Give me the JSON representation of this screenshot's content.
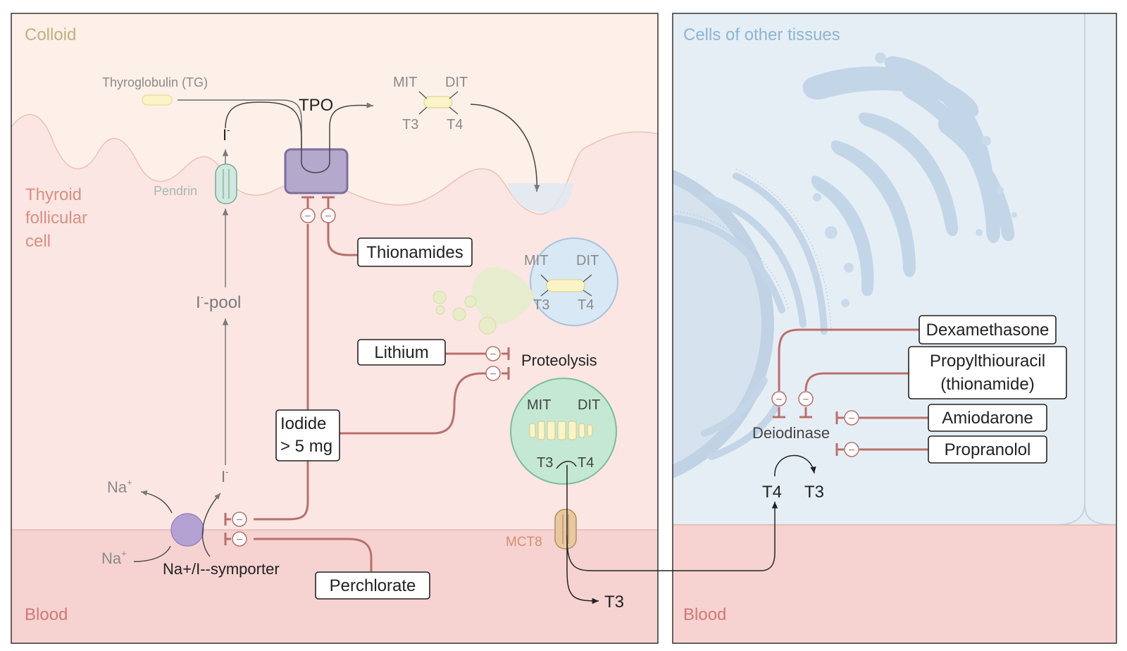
{
  "left_panel": {
    "colloid_label": "Colloid",
    "follicular_cell_label": [
      "Thyroid",
      "follicular",
      "cell"
    ],
    "blood_label": "Blood",
    "thyroglobulin_label": "Thyroglobulin (TG)",
    "tpo_label": "TPO",
    "iodide_top_label": "I",
    "iodide_top_sup": "-",
    "pendrin_label": "Pendrin",
    "iodide_pool_label": "I",
    "iodide_pool_sup": "-",
    "iodide_pool_suffix": "-pool",
    "iodide_bottom_label": "I",
    "iodide_bottom_sup": "-",
    "na_out_label": "Na",
    "na_out_sup": "+",
    "na_in_label": "Na",
    "na_in_sup": "+",
    "symporter_label": "Na+/I--symporter",
    "colloid_mit": "MIT",
    "colloid_dit": "DIT",
    "colloid_t3": "T3",
    "colloid_t4": "T4",
    "vesicle_mit": "MIT",
    "vesicle_dit": "DIT",
    "vesicle_t3": "T3",
    "vesicle_t4": "T4",
    "lysosome_mit": "MIT",
    "lysosome_dit": "DIT",
    "lysosome_t3": "T3",
    "lysosome_t4": "T4",
    "proteolysis_label": "Proteolysis",
    "mct8_label": "MCT8",
    "t3_release_label": "T3"
  },
  "drugs": {
    "thionamides": "Thionamides",
    "lithium": "Lithium",
    "iodide_line1": "Iodide",
    "iodide_line2": "> 5 mg",
    "perchlorate": "Perchlorate",
    "dexamethasone": "Dexamethasone",
    "ptu_line1": "Propylthiouracil",
    "ptu_line2": "(thionamide)",
    "amiodarone": "Amiodarone",
    "propranolol": "Propranolol"
  },
  "right_panel": {
    "title": "Cells of other tissues",
    "blood_label": "Blood",
    "deiodinase_label": "Deiodinase",
    "t4_label": "T4",
    "t3_label": "T3"
  },
  "inhibit_symbol": "−",
  "colors": {
    "colloid_bg": "#fdf0e8",
    "cell_bg": "#fbe6e4",
    "blood_bg": "#f6d3d1",
    "other_cell_bg": "#e6eef5",
    "inhibit_line": "#b8706c",
    "tpo": "#b4a8cc",
    "symporter": "#b4a2d4",
    "lysosome": "#c4e8d4",
    "vesicle": "#d8e8f4",
    "text_dark": "#222222",
    "text_grey": "#8a8a8a",
    "colloid_text": "#c0b080",
    "cell_text": "#d89080",
    "other_text": "#8cb4d4"
  }
}
